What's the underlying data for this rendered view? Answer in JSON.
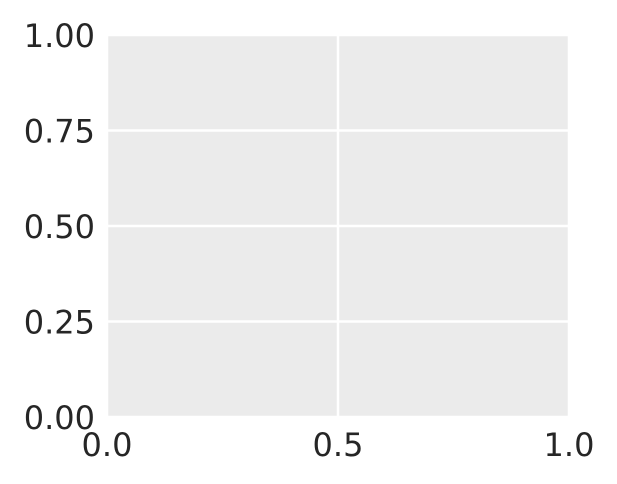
{
  "chart_data": {
    "type": "line",
    "title": "",
    "xlabel": "",
    "ylabel": "",
    "xlim": [
      0.0,
      1.0
    ],
    "ylim": [
      0.0,
      1.0
    ],
    "x_ticks": [
      {
        "value": 0.0,
        "label": "0.0"
      },
      {
        "value": 0.5,
        "label": "0.5"
      },
      {
        "value": 1.0,
        "label": "1.0"
      }
    ],
    "y_ticks": [
      {
        "value": 0.0,
        "label": "0.00"
      },
      {
        "value": 0.25,
        "label": "0.25"
      },
      {
        "value": 0.5,
        "label": "0.50"
      },
      {
        "value": 0.75,
        "label": "0.75"
      },
      {
        "value": 1.0,
        "label": "1.00"
      }
    ],
    "series": [],
    "grid": true,
    "legend": "none",
    "colors": {
      "plot_background": "#ebebeb",
      "grid": "#ffffff",
      "tick_text": "#262626",
      "figure_background": "#ffffff"
    }
  }
}
